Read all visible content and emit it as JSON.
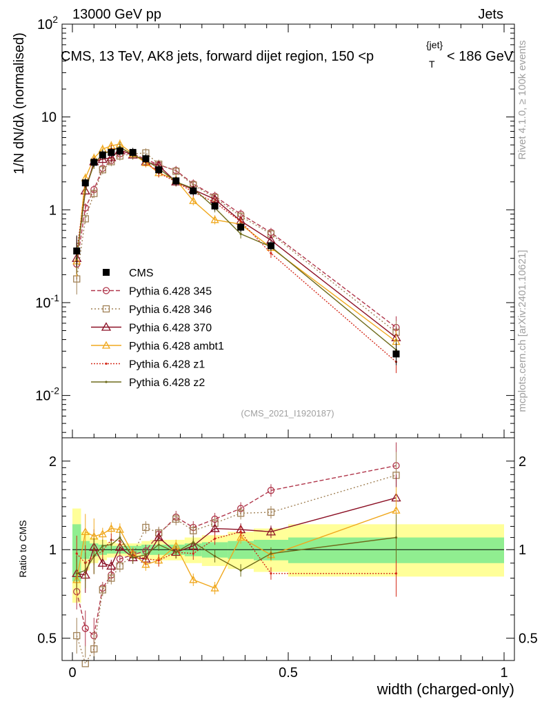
{
  "header": {
    "left": "13000 GeV pp",
    "right": "Jets"
  },
  "plot_title": "CMS, 13 TeV, AK8 jets, forward dijet region, 150 <p",
  "plot_title_sub": "T",
  "plot_title_sup": "{jet}",
  "plot_title_end": "< 186 GeV",
  "side_label_top": "Rivet 4.1.0, ≥ 100k events",
  "side_label_bottom": "mcplots.cern.ch [arXiv:2401.10621]",
  "analysis_tag": "(CMS_2021_I1920187)",
  "ylabel_main": "1/N dN/dλ (normalised)",
  "ylabel_ratio": "Ratio to CMS",
  "xlabel": "width (charged-only)",
  "colors": {
    "cms": "#000000",
    "p345": "#b0354a",
    "p346": "#a08055",
    "p370": "#8b0f24",
    "ambt1": "#f0a81e",
    "z1": "#d42a1a",
    "z2": "#6d6a1a",
    "band_inner": "#90ee90",
    "band_outer": "#ffff99"
  },
  "chart_data": [
    {
      "type": "line",
      "panel": "main",
      "yscale": "log",
      "xlim": [
        0,
        1
      ],
      "ylim": [
        0.0035,
        100
      ],
      "x_ticks": [
        "0",
        "0.5",
        "1"
      ],
      "y_ticks": [
        "10^-2",
        "10^-1",
        "1",
        "10",
        "10^2"
      ],
      "x": [
        0.01,
        0.03,
        0.05,
        0.07,
        0.09,
        0.11,
        0.14,
        0.17,
        0.2,
        0.24,
        0.28,
        0.33,
        0.39,
        0.46,
        0.75
      ],
      "series": [
        {
          "name": "CMS",
          "style": "data",
          "values": [
            0.36,
            1.95,
            3.25,
            3.9,
            4.15,
            4.3,
            4.15,
            3.55,
            2.7,
            2.05,
            1.6,
            1.1,
            0.65,
            0.41,
            0.028
          ]
        },
        {
          "name": "Pythia 6.428 345",
          "style": "circle-dash",
          "values": [
            0.26,
            1.05,
            1.65,
            2.8,
            3.4,
            4.0,
            4.0,
            3.5,
            3.05,
            2.65,
            1.9,
            1.4,
            0.9,
            0.57,
            0.054
          ]
        },
        {
          "name": "Pythia 6.428 346",
          "style": "square-dot",
          "values": [
            0.18,
            0.8,
            1.5,
            2.7,
            3.3,
            3.8,
            4.0,
            4.1,
            3.1,
            2.6,
            1.85,
            1.35,
            0.85,
            0.55,
            0.048
          ]
        },
        {
          "name": "Pythia 6.428 370",
          "style": "triangle",
          "values": [
            0.3,
            1.6,
            3.3,
            3.5,
            3.65,
            4.4,
            3.9,
            3.3,
            3.0,
            2.0,
            1.65,
            1.3,
            0.76,
            0.47,
            0.042
          ]
        },
        {
          "name": "Pythia 6.428 ambt1",
          "style": "triangle-light",
          "values": [
            0.28,
            2.2,
            3.6,
            4.5,
            4.9,
            5.1,
            4.0,
            3.2,
            2.5,
            2.1,
            1.25,
            0.78,
            0.7,
            0.39,
            0.038
          ]
        },
        {
          "name": "Pythia 6.428 z1",
          "style": "dot-dot",
          "values": [
            0.35,
            1.75,
            3.1,
            3.85,
            4.5,
            4.6,
            4.0,
            3.3,
            2.5,
            2.0,
            1.55,
            1.2,
            0.75,
            0.34,
            0.023
          ]
        },
        {
          "name": "Pythia 6.428 z2",
          "style": "dot-solid",
          "values": [
            0.3,
            1.65,
            3.1,
            4.0,
            4.3,
            4.75,
            3.9,
            3.4,
            2.8,
            2.0,
            1.7,
            1.05,
            0.55,
            0.4,
            0.031
          ]
        }
      ]
    },
    {
      "type": "line",
      "panel": "ratio",
      "yscale": "log",
      "xlim": [
        0,
        1
      ],
      "ylim": [
        0.42,
        2.4
      ],
      "x_ticks": [
        "0",
        "0.5",
        "1"
      ],
      "y_ticks": [
        "0.5",
        "1",
        "2"
      ],
      "x": [
        0.01,
        0.03,
        0.05,
        0.07,
        0.09,
        0.11,
        0.14,
        0.17,
        0.2,
        0.24,
        0.28,
        0.33,
        0.39,
        0.46,
        0.75
      ],
      "bands": {
        "edges": [
          0,
          0.02,
          0.04,
          0.06,
          0.08,
          0.1,
          0.12,
          0.16,
          0.18,
          0.22,
          0.26,
          0.3,
          0.36,
          0.42,
          0.5,
          1.0
        ],
        "inner_lo": [
          0.78,
          0.93,
          0.95,
          0.96,
          0.97,
          0.97,
          0.97,
          0.96,
          0.96,
          0.96,
          0.95,
          0.94,
          0.93,
          0.92,
          0.9
        ],
        "inner_hi": [
          1.22,
          1.07,
          1.05,
          1.04,
          1.03,
          1.03,
          1.03,
          1.04,
          1.04,
          1.04,
          1.05,
          1.06,
          1.07,
          1.08,
          1.1
        ],
        "outer_lo": [
          0.66,
          0.85,
          0.9,
          0.92,
          0.94,
          0.95,
          0.95,
          0.93,
          0.92,
          0.92,
          0.9,
          0.88,
          0.86,
          0.84,
          0.81
        ],
        "outer_hi": [
          1.38,
          1.15,
          1.1,
          1.08,
          1.06,
          1.05,
          1.05,
          1.07,
          1.08,
          1.08,
          1.1,
          1.12,
          1.15,
          1.18,
          1.22
        ]
      },
      "series": [
        {
          "name": "Pythia 6.428 345",
          "style": "circle-dash",
          "values": [
            0.72,
            0.54,
            0.51,
            0.74,
            0.82,
            0.93,
            0.96,
            0.99,
            1.13,
            1.29,
            1.19,
            1.27,
            1.38,
            1.59,
            1.93
          ]
        },
        {
          "name": "Pythia 6.428 346",
          "style": "square-dot",
          "values": [
            0.51,
            0.41,
            0.46,
            0.73,
            0.8,
            0.88,
            0.96,
            1.19,
            1.14,
            1.27,
            1.16,
            1.23,
            1.33,
            1.34,
            1.79
          ]
        },
        {
          "name": "Pythia 6.428 370",
          "style": "triangle",
          "values": [
            0.83,
            0.82,
            1.02,
            0.9,
            0.88,
            1.02,
            0.94,
            0.93,
            1.1,
            0.98,
            1.03,
            1.18,
            1.17,
            1.15,
            1.5
          ]
        },
        {
          "name": "Pythia 6.428 ambt1",
          "style": "triangle-light",
          "values": [
            0.79,
            1.15,
            1.11,
            1.13,
            1.18,
            1.17,
            0.97,
            0.89,
            0.92,
            1.03,
            0.79,
            0.74,
            1.1,
            0.96,
            1.36
          ]
        },
        {
          "name": "Pythia 6.428 z1",
          "style": "dot-dot",
          "values": [
            0.97,
            0.9,
            0.95,
            0.99,
            1.08,
            1.07,
            0.96,
            0.93,
            0.92,
            0.98,
            0.97,
            1.09,
            1.15,
            0.83,
            0.83
          ]
        },
        {
          "name": "Pythia 6.428 z2",
          "style": "dot-solid",
          "values": [
            0.83,
            0.85,
            0.95,
            1.03,
            1.04,
            1.1,
            0.94,
            0.96,
            1.04,
            0.98,
            1.06,
            0.95,
            0.85,
            0.97,
            1.1
          ]
        }
      ]
    }
  ]
}
